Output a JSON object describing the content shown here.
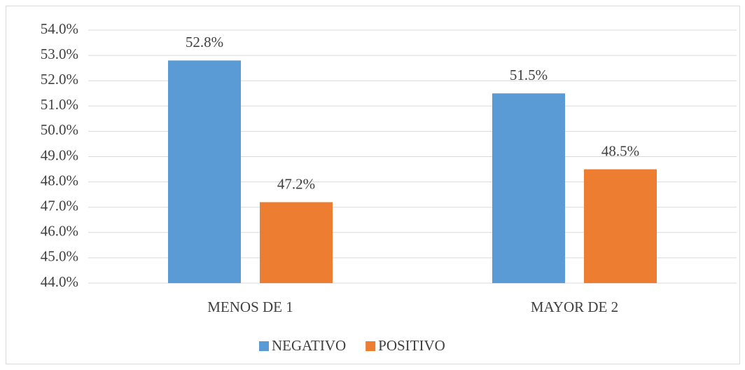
{
  "chart_data": {
    "type": "bar",
    "categories": [
      "MENOS DE 1",
      "MAYOR DE 2"
    ],
    "series": [
      {
        "name": "NEGATIVO",
        "color": "#5b9bd5",
        "values": [
          52.8,
          51.5
        ],
        "value_labels": [
          "52.8%",
          "51.5%"
        ]
      },
      {
        "name": "POSITIVO",
        "color": "#ed7d31",
        "values": [
          47.2,
          48.5
        ],
        "value_labels": [
          "47.2%",
          "48.5%"
        ]
      }
    ],
    "ylim": [
      44,
      54
    ],
    "yticks": [
      {
        "value": 44,
        "label": "44.0%"
      },
      {
        "value": 45,
        "label": "45.0%"
      },
      {
        "value": 46,
        "label": "46.0%"
      },
      {
        "value": 47,
        "label": "47.0%"
      },
      {
        "value": 48,
        "label": "48.0%"
      },
      {
        "value": 49,
        "label": "49.0%"
      },
      {
        "value": 50,
        "label": "50.0%"
      },
      {
        "value": 51,
        "label": "51.0%"
      },
      {
        "value": 52,
        "label": "52.0%"
      },
      {
        "value": 53,
        "label": "53.0%"
      },
      {
        "value": 54,
        "label": "54.0%"
      }
    ],
    "grid": true,
    "legend": "bottom"
  }
}
